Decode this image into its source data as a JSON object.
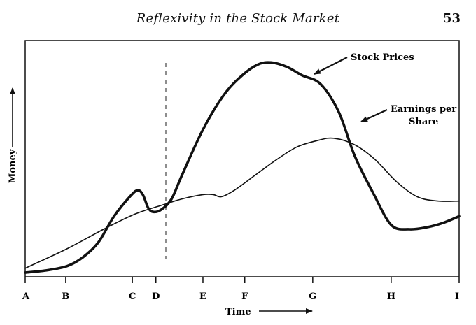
{
  "page": {
    "header_title": "Reflexivity in the Stock Market",
    "page_number": "53"
  },
  "chart_data": {
    "type": "line",
    "title": "",
    "xlabel": "Time",
    "ylabel": "Money",
    "x_ticks": [
      "A",
      "B",
      "C",
      "D",
      "E",
      "F",
      "G",
      "H",
      "I"
    ],
    "x_tick_positions": [
      0,
      1.55,
      4.1,
      5.0,
      6.8,
      8.4,
      11.0,
      14.0,
      16.6
    ],
    "xlim": [
      0,
      16.6
    ],
    "ylim": [
      0,
      100
    ],
    "grid": false,
    "reference_line": {
      "x": 5.3,
      "style": "dashed"
    },
    "series": [
      {
        "name": "Stock Prices",
        "style": "bold",
        "x": [
          0,
          0.8,
          1.6,
          2.2,
          2.8,
          3.4,
          4.0,
          4.3,
          4.5,
          4.7,
          4.9,
          5.2,
          5.6,
          6.0,
          6.8,
          7.6,
          8.3,
          8.9,
          9.4,
          10.0,
          10.6,
          11.3,
          12.0,
          12.6,
          13.3,
          14.0,
          14.7,
          15.4,
          16.0,
          16.6
        ],
        "y": [
          0,
          1,
          3,
          7,
          14,
          26,
          35,
          38,
          36,
          30,
          28,
          29,
          34,
          45,
          66,
          82,
          91,
          96,
          97,
          95,
          91,
          87,
          74,
          54,
          37,
          22,
          20,
          21,
          23,
          26
        ]
      },
      {
        "name": "Earnings per Share",
        "x": [
          0,
          1.6,
          3.0,
          4.2,
          5.2,
          6.0,
          6.8,
          7.2,
          7.5,
          8.0,
          8.8,
          9.6,
          10.4,
          11.2,
          11.8,
          12.6,
          13.4,
          14.2,
          15.0,
          15.8,
          16.6
        ],
        "y": [
          2,
          11,
          20,
          27,
          31,
          34,
          36,
          36,
          35,
          38,
          45,
          52,
          58,
          61,
          62,
          59,
          52,
          42,
          35,
          33,
          33
        ]
      }
    ],
    "annotations": [
      {
        "lines": [
          "Stock Prices"
        ],
        "points_to": "Stock Prices"
      },
      {
        "lines": [
          "Earnings per",
          "Share"
        ],
        "points_to": "Earnings per Share"
      }
    ]
  }
}
